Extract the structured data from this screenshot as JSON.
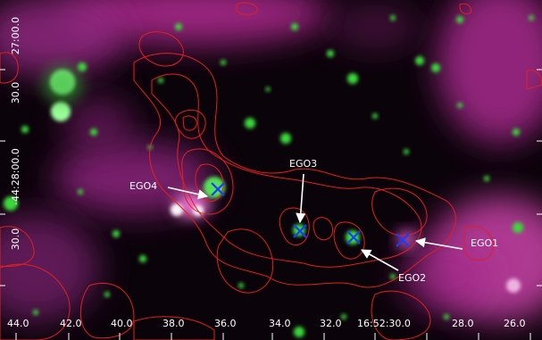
{
  "image": {
    "x_tick_labels": [
      "44.0",
      "42.0",
      "40.0",
      "38.0",
      "36.0",
      "34.0",
      "32.0",
      "16:52:30.0",
      "28.0",
      "26.0"
    ],
    "y_tick_labels": [
      "27:00.0",
      "30.0",
      "-44:28:00.0",
      "30.0"
    ],
    "ego_labels": [
      "EGO1",
      "EGO2",
      "EGO3",
      "EGO4"
    ],
    "colors": {
      "contour": "#e02020",
      "marker": "#1a3cff",
      "nebula": "#b0208f",
      "sources": "#3cd83c"
    },
    "marker_icon": "x-cross-icon"
  }
}
